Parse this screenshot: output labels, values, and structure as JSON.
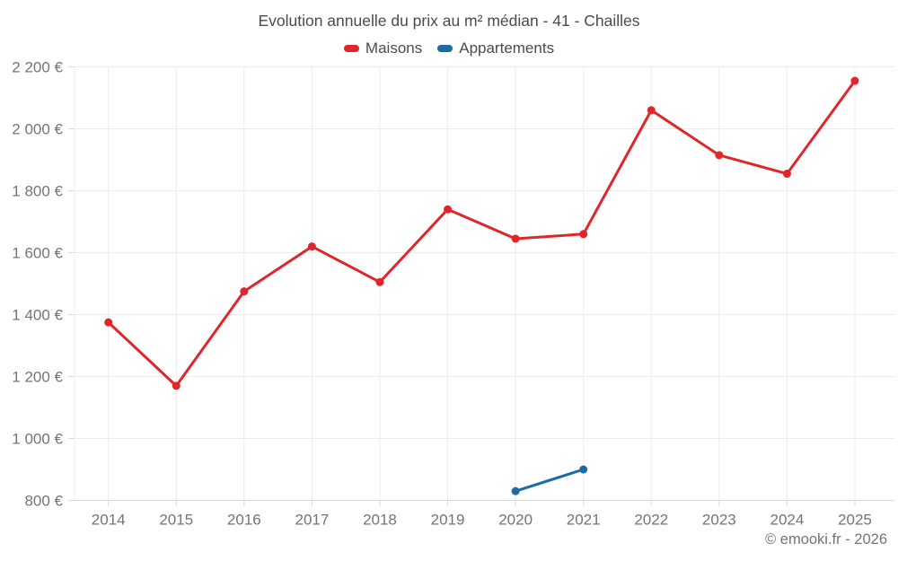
{
  "title": "Evolution annuelle du prix au m² médian - 41 - Chailles",
  "footer": {
    "copyright": "© emooki.fr - 2026"
  },
  "colors": {
    "maisons": "#e0262b",
    "appartements": "#1b6ca6",
    "grid": "#ececec",
    "axis": "#d9d9d9",
    "tick_label": "#757575",
    "title_text": "#4b4b4b",
    "background": "#ffffff"
  },
  "chart_data": {
    "type": "line",
    "title": "Evolution annuelle du prix au m² médian - 41 - Chailles",
    "xlabel": "",
    "ylabel": "",
    "x": [
      2014,
      2015,
      2016,
      2017,
      2018,
      2019,
      2020,
      2021,
      2022,
      2023,
      2024,
      2025
    ],
    "series": [
      {
        "name": "Maisons",
        "color": "#e0262b",
        "x": [
          2014,
          2015,
          2016,
          2017,
          2018,
          2019,
          2020,
          2021,
          2022,
          2023,
          2024,
          2025
        ],
        "values": [
          1375,
          1170,
          1475,
          1620,
          1505,
          1740,
          1645,
          1660,
          2060,
          1915,
          1855,
          2155
        ]
      },
      {
        "name": "Appartements",
        "color": "#1b6ca6",
        "x": [
          2020,
          2021
        ],
        "values": [
          830,
          900
        ]
      }
    ],
    "ylim": [
      800,
      2200
    ],
    "ytick_step": 200,
    "ytick_suffix": " €",
    "grid": true,
    "legend_position": "top"
  }
}
